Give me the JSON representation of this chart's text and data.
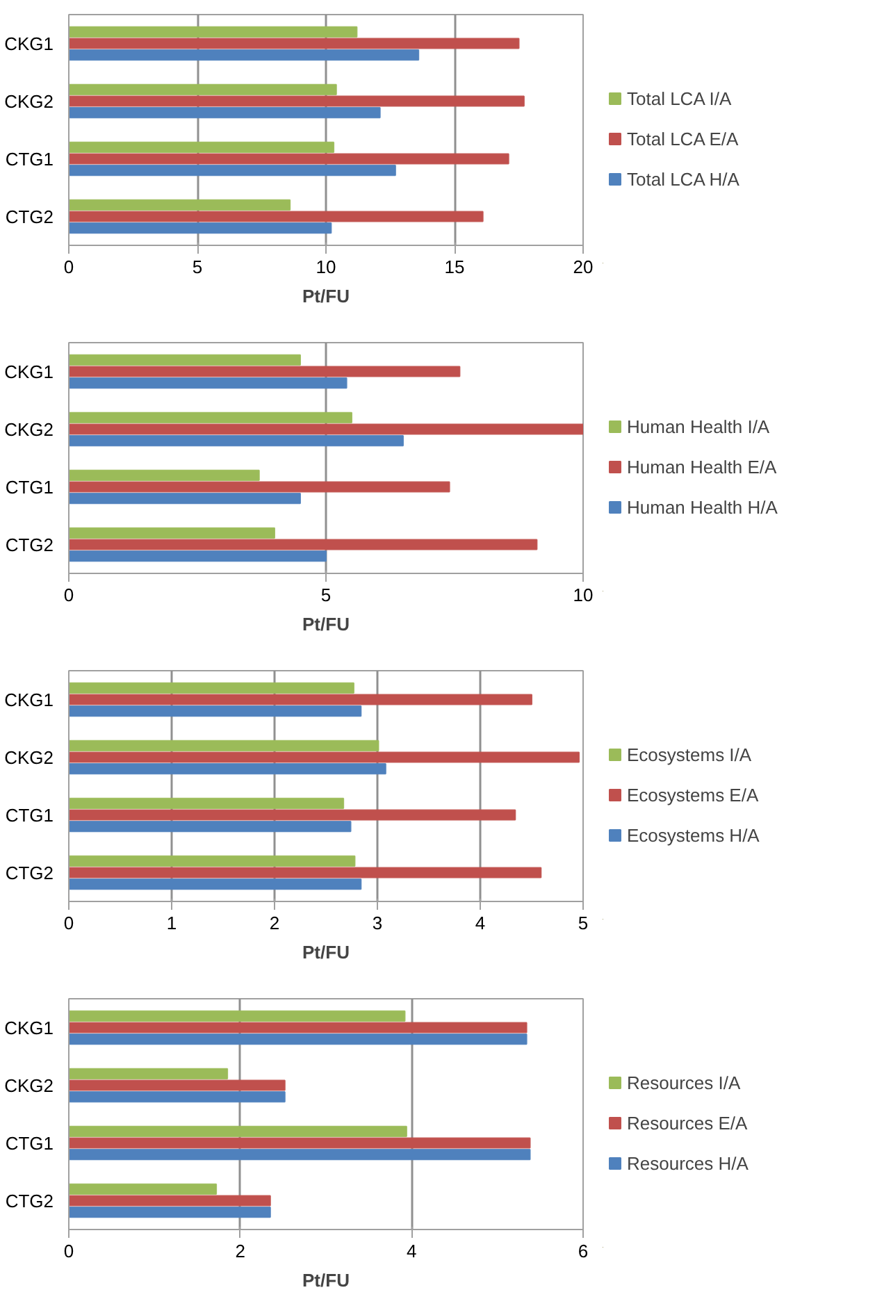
{
  "chart_data": [
    {
      "type": "bar",
      "orientation": "horizontal",
      "categories": [
        "CKG1",
        "CKG2",
        "CTG1",
        "CTG2"
      ],
      "xlabel": "Pt/FU",
      "xlim": [
        0,
        20
      ],
      "xticks": [
        0,
        5,
        10,
        15,
        20
      ],
      "grid": "x",
      "legend": "right",
      "series": [
        {
          "name": "Total LCA H/A",
          "color": "#4f81bd",
          "values": [
            13.6,
            12.1,
            12.7,
            10.2
          ]
        },
        {
          "name": "Total LCA E/A",
          "color": "#c0504d",
          "values": [
            17.5,
            17.7,
            17.1,
            16.1
          ]
        },
        {
          "name": "Total LCA I/A",
          "color": "#9bbb59",
          "values": [
            11.2,
            10.4,
            10.3,
            8.6
          ]
        }
      ]
    },
    {
      "type": "bar",
      "orientation": "horizontal",
      "categories": [
        "CKG1",
        "CKG2",
        "CTG1",
        "CTG2"
      ],
      "xlabel": "Pt/FU",
      "xlim": [
        0,
        10
      ],
      "xticks": [
        0,
        5,
        10
      ],
      "grid": "x",
      "legend": "right",
      "series": [
        {
          "name": "Human Health H/A",
          "color": "#4f81bd",
          "values": [
            5.4,
            6.5,
            4.5,
            5.0
          ]
        },
        {
          "name": "Human Health E/A",
          "color": "#c0504d",
          "values": [
            7.6,
            10.0,
            7.4,
            9.1
          ]
        },
        {
          "name": "Human Health I/A",
          "color": "#9bbb59",
          "values": [
            4.5,
            5.5,
            3.7,
            4.0
          ]
        }
      ]
    },
    {
      "type": "bar",
      "orientation": "horizontal",
      "categories": [
        "CKG1",
        "CKG2",
        "CTG1",
        "CTG2"
      ],
      "xlabel": "Pt/FU",
      "xlim": [
        0,
        5
      ],
      "xticks": [
        0,
        1,
        2,
        3,
        4,
        5
      ],
      "grid": "x",
      "legend": "right",
      "series": [
        {
          "name": "Ecosystems H/A",
          "color": "#4f81bd",
          "values": [
            2.84,
            3.08,
            2.74,
            2.84
          ]
        },
        {
          "name": "Ecosystems E/A",
          "color": "#c0504d",
          "values": [
            4.5,
            4.96,
            4.34,
            4.59
          ]
        },
        {
          "name": "Ecosystems I/A",
          "color": "#9bbb59",
          "values": [
            2.77,
            3.01,
            2.67,
            2.78
          ]
        }
      ]
    },
    {
      "type": "bar",
      "orientation": "horizontal",
      "categories": [
        "CKG1",
        "CKG2",
        "CTG1",
        "CTG2"
      ],
      "xlabel": "Pt/FU",
      "xlim": [
        0,
        6
      ],
      "xticks": [
        0,
        2,
        4,
        6
      ],
      "grid": "x",
      "legend": "right",
      "series": [
        {
          "name": "Resources H/A",
          "color": "#4f81bd",
          "values": [
            5.34,
            2.52,
            5.38,
            2.35
          ]
        },
        {
          "name": "Resources E/A",
          "color": "#c0504d",
          "values": [
            5.34,
            2.52,
            5.38,
            2.35
          ]
        },
        {
          "name": "Resources I/A",
          "color": "#9bbb59",
          "values": [
            3.92,
            1.85,
            3.94,
            1.72
          ]
        }
      ]
    }
  ]
}
